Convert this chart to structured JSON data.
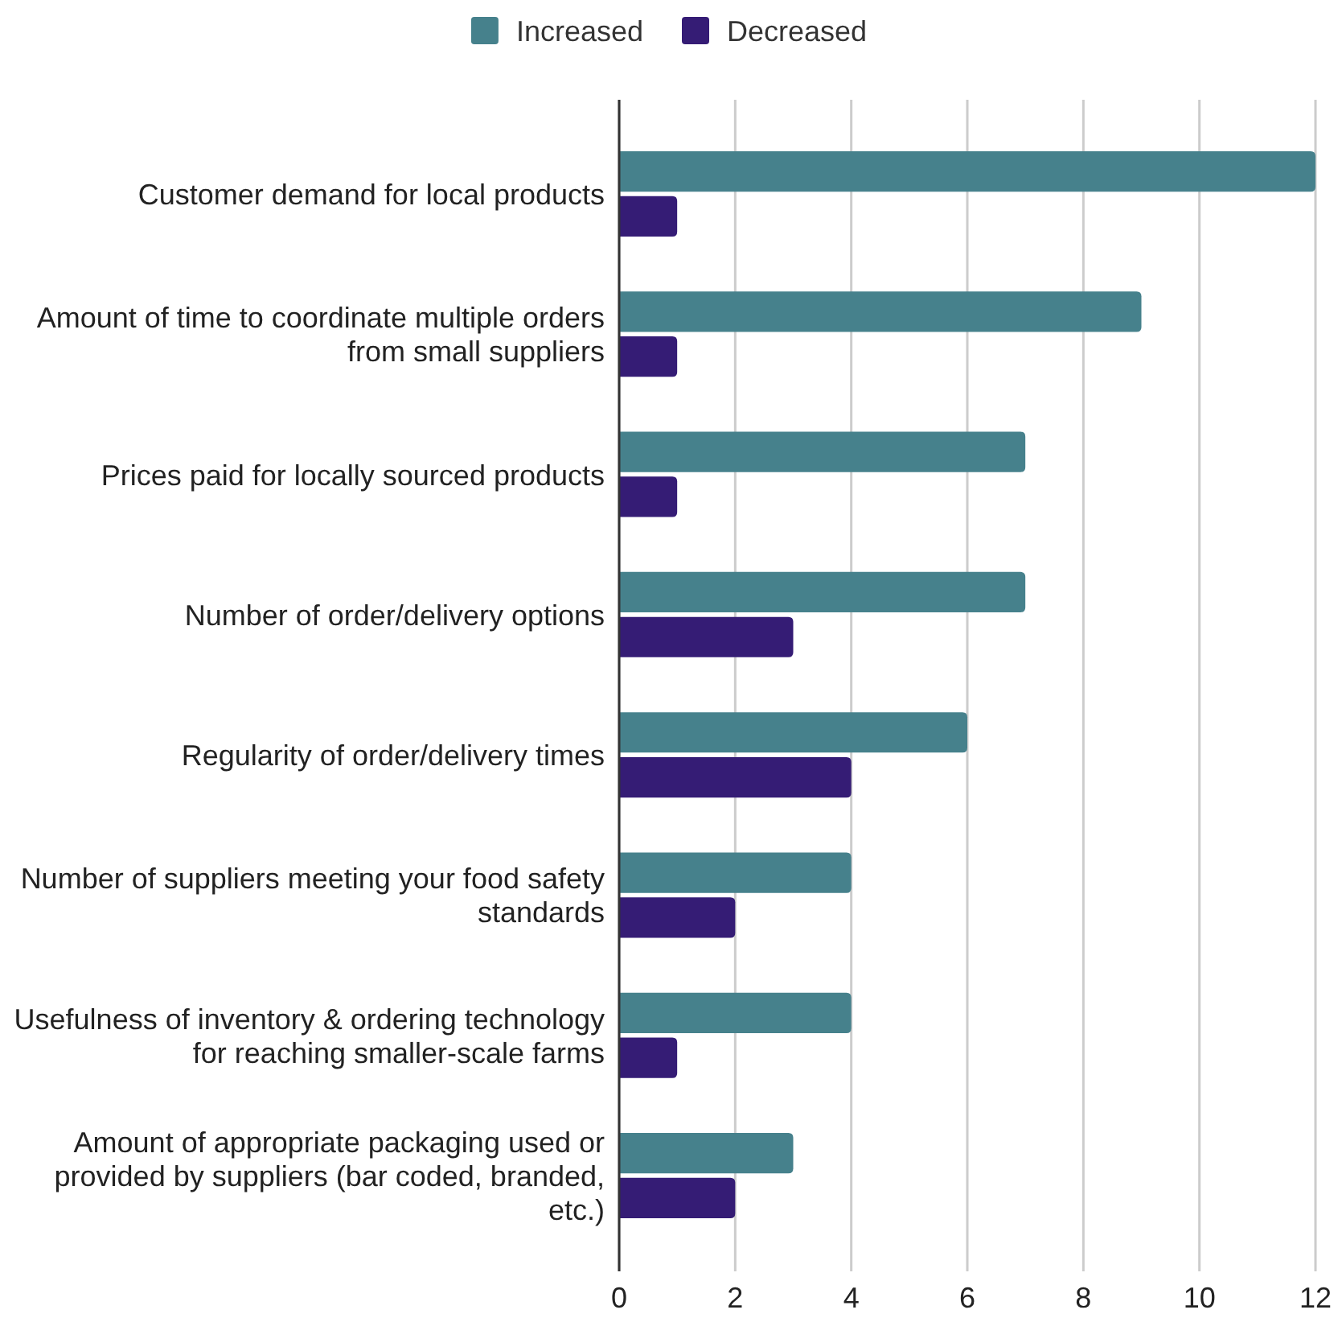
{
  "chart_data": {
    "type": "bar",
    "orientation": "horizontal",
    "categories": [
      "Customer demand for local products",
      "Amount of time to coordinate multiple orders from small suppliers",
      "Prices paid for locally sourced products",
      "Number of order/delivery options",
      "Regularity of order/delivery times",
      "Number of suppliers meeting your food safety standards",
      "Usefulness of inventory & ordering technology for reaching smaller-scale farms",
      "Amount of appropriate packaging used or provided by suppliers (bar coded, branded, etc.)"
    ],
    "series": [
      {
        "name": "Increased",
        "color": "#46818c",
        "values": [
          12,
          9,
          7,
          7,
          6,
          4,
          4,
          3
        ]
      },
      {
        "name": "Decreased",
        "color": "#351c75",
        "values": [
          1,
          1,
          1,
          3,
          4,
          2,
          1,
          2
        ]
      }
    ],
    "xlim": [
      0,
      12
    ],
    "xticks": [
      0,
      2,
      4,
      6,
      8,
      10,
      12
    ],
    "grid": "x",
    "legend": "top"
  }
}
